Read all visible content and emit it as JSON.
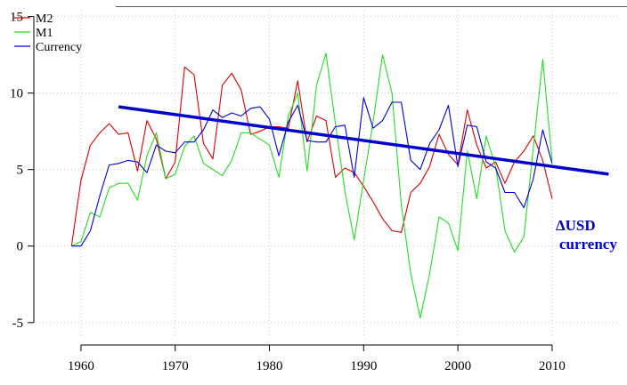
{
  "chart_data": {
    "type": "line",
    "title": "",
    "xlabel": "",
    "ylabel": "",
    "xlim": [
      1955,
      2017
    ],
    "ylim": [
      -6,
      15.5
    ],
    "x_ticks": [
      1960,
      1970,
      1980,
      1990,
      2000,
      2010
    ],
    "y_ticks": [
      -5,
      0,
      5,
      10,
      15
    ],
    "grid": true,
    "legend_position": "top-left",
    "annotation": [
      "ΔUSD",
      "currency"
    ],
    "series": [
      {
        "name": "M2",
        "color": "#dd0000",
        "x": [
          1959,
          1960,
          1961,
          1962,
          1963,
          1964,
          1965,
          1966,
          1967,
          1968,
          1969,
          1970,
          1971,
          1972,
          1973,
          1974,
          1975,
          1976,
          1977,
          1978,
          1979,
          1980,
          1981,
          1982,
          1983,
          1984,
          1985,
          1986,
          1987,
          1988,
          1989,
          1990,
          1991,
          1992,
          1993,
          1994,
          1995,
          1996,
          1997,
          1998,
          1999,
          2000,
          2001,
          2002,
          2003,
          2004,
          2005,
          2006,
          2007,
          2008,
          2009,
          2010
        ],
        "values": [
          0,
          4.3,
          6.6,
          7.4,
          8.0,
          7.3,
          7.4,
          4.9,
          8.2,
          7.0,
          4.4,
          5.5,
          11.7,
          11.2,
          6.7,
          5.7,
          10.5,
          11.3,
          10.2,
          7.3,
          7.5,
          7.8,
          7.8,
          7.7,
          10.8,
          6.8,
          8.5,
          8.2,
          4.5,
          5.1,
          4.8,
          3.9,
          2.9,
          1.8,
          1.0,
          0.9,
          3.5,
          4.1,
          5.2,
          7.3,
          6.0,
          5.3,
          8.9,
          6.6,
          5.1,
          5.5,
          4.1,
          5.5,
          6.2,
          7.2,
          5.6,
          3.1
        ]
      },
      {
        "name": "M1",
        "color": "#22dd22",
        "x": [
          1959,
          1960,
          1961,
          1962,
          1963,
          1964,
          1965,
          1966,
          1967,
          1968,
          1969,
          1970,
          1971,
          1972,
          1973,
          1974,
          1975,
          1976,
          1977,
          1978,
          1979,
          1980,
          1981,
          1982,
          1983,
          1984,
          1985,
          1986,
          1987,
          1988,
          1989,
          1990,
          1991,
          1992,
          1993,
          1994,
          1995,
          1996,
          1997,
          1998,
          1999,
          2000,
          2001,
          2002,
          2003,
          2004,
          2005,
          2006,
          2007,
          2008,
          2009,
          2010
        ],
        "values": [
          0,
          0.3,
          2.2,
          1.9,
          3.8,
          4.1,
          4.1,
          3.0,
          5.9,
          7.4,
          4.4,
          4.7,
          6.5,
          7.2,
          5.4,
          5.0,
          4.6,
          5.6,
          7.4,
          7.4,
          7.0,
          6.6,
          4.5,
          8.5,
          10.0,
          4.9,
          10.5,
          12.6,
          8.0,
          3.6,
          0.4,
          4.3,
          8.1,
          12.5,
          10.0,
          2.7,
          -1.8,
          -4.7,
          -1.8,
          1.9,
          1.5,
          -0.3,
          6.2,
          3.1,
          7.2,
          5.2,
          1.0,
          -0.4,
          0.6,
          6.4,
          12.2,
          5.6
        ]
      },
      {
        "name": "Currency",
        "color": "#0000dd",
        "x": [
          1959,
          1960,
          1961,
          1962,
          1963,
          1964,
          1965,
          1966,
          1967,
          1968,
          1969,
          1970,
          1971,
          1972,
          1973,
          1974,
          1975,
          1976,
          1977,
          1978,
          1979,
          1980,
          1981,
          1982,
          1983,
          1984,
          1985,
          1986,
          1987,
          1988,
          1989,
          1990,
          1991,
          1992,
          1993,
          1994,
          1995,
          1996,
          1997,
          1998,
          1999,
          2000,
          2001,
          2002,
          2003,
          2004,
          2005,
          2006,
          2007,
          2008,
          2009,
          2010
        ],
        "values": [
          0,
          0,
          1.0,
          3.3,
          5.3,
          5.4,
          5.6,
          5.5,
          4.8,
          6.6,
          6.2,
          6.1,
          6.8,
          6.8,
          7.6,
          8.9,
          8.4,
          8.7,
          8.5,
          9.0,
          9.1,
          8.3,
          5.9,
          8.1,
          9.2,
          6.9,
          6.8,
          6.8,
          7.8,
          7.9,
          4.5,
          9.7,
          7.7,
          8.2,
          9.4,
          9.4,
          5.6,
          5.0,
          6.7,
          7.6,
          9.2,
          5.2,
          7.9,
          7.8,
          5.5,
          5.1,
          3.5,
          3.5,
          2.5,
          4.4,
          7.6,
          5.4
        ]
      },
      {
        "name": "",
        "color": "#0000cc",
        "x": [
          1964,
          2016
        ],
        "values": [
          9.1,
          4.7
        ]
      }
    ]
  }
}
